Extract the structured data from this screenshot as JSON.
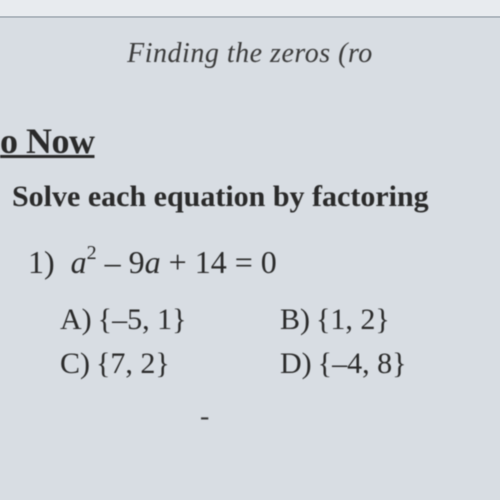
{
  "colors": {
    "background": "#d8dde3",
    "topbar": "#e8ebef",
    "topbar_border": "#b0b8c0",
    "text": "#2a2a2a",
    "subtitle_text": "#3a3a3a"
  },
  "typography": {
    "subtitle_fontsize": 28,
    "section_title_fontsize": 36,
    "instruction_fontsize": 30,
    "question_fontsize": 32,
    "choice_fontsize": 30,
    "font_family": "Times New Roman"
  },
  "subtitle": "Finding the zeros (ro",
  "section_title": "o Now",
  "instruction": "Solve each equation by factoring",
  "question": {
    "number": "1)",
    "variable": "a",
    "exponent": "2",
    "middle": " – 9",
    "variable2": "a",
    "tail": " + 14 = 0"
  },
  "choices": {
    "a": {
      "label": "A)",
      "open": "{",
      "content": "–5, 1",
      "close": "}"
    },
    "b": {
      "label": "B)",
      "open": "{",
      "content": "1, 2",
      "close": "}"
    },
    "c": {
      "label": "C)",
      "open": "{",
      "content": "7, 2",
      "close": "}"
    },
    "d": {
      "label": "D)",
      "open": "{",
      "content": "–4, 8",
      "close": "}"
    }
  },
  "bottom_dash": "-"
}
